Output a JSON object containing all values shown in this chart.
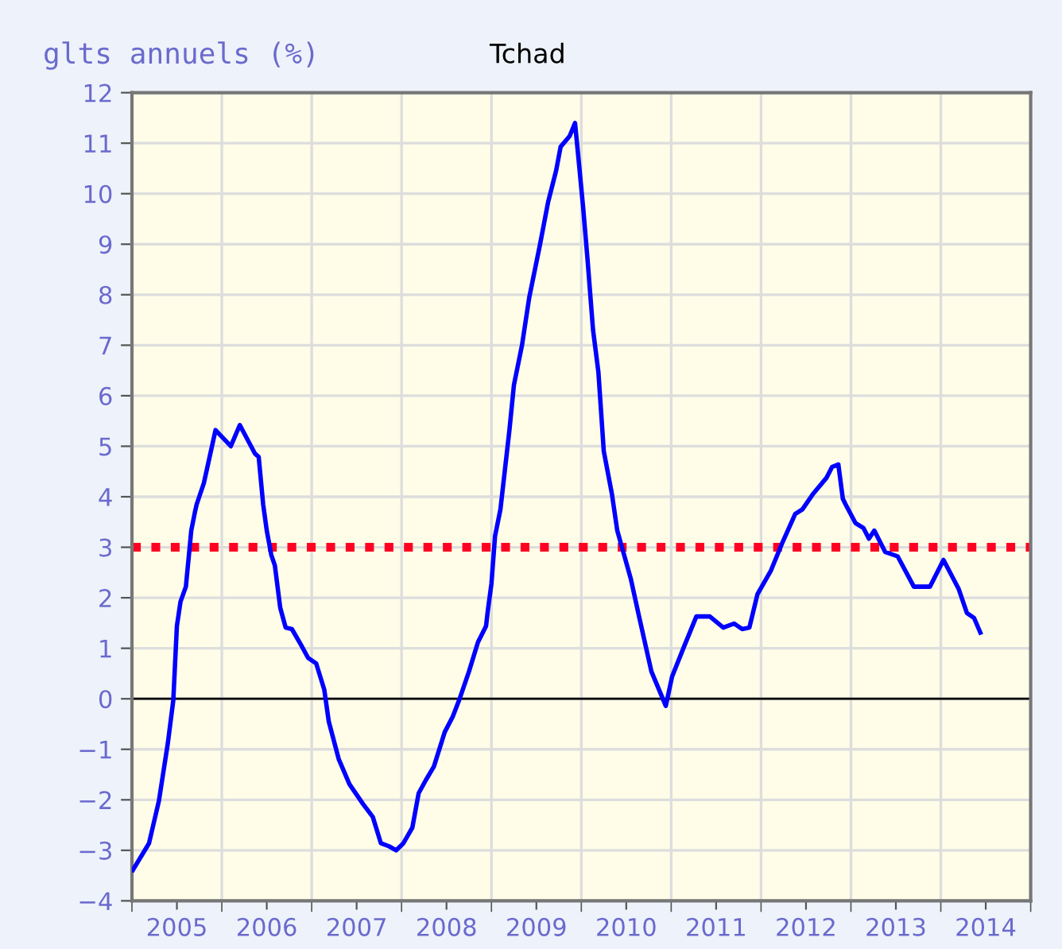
{
  "chart_data": {
    "type": "line",
    "title": "Tchad",
    "ylabel": "glts annuels (%)",
    "x": [
      2005.01,
      2005.19,
      2005.3,
      2005.4,
      2005.46,
      2005.5,
      2005.54,
      2005.6,
      2005.66,
      2005.7,
      2005.72,
      2005.8,
      2005.93,
      2006.1,
      2006.2,
      2006.37,
      2006.41,
      2006.46,
      2006.5,
      2006.55,
      2006.59,
      2006.65,
      2006.71,
      2006.78,
      2006.88,
      2006.96,
      2007.05,
      2007.14,
      2007.19,
      2007.3,
      2007.42,
      2007.57,
      2007.68,
      2007.77,
      2007.86,
      2007.94,
      2008.02,
      2008.12,
      2008.19,
      2008.27,
      2008.36,
      2008.48,
      2008.57,
      2008.65,
      2008.75,
      2008.85,
      2008.94,
      2008.96,
      2009.0,
      2009.04,
      2009.1,
      2009.2,
      2009.25,
      2009.34,
      2009.42,
      2009.54,
      2009.63,
      2009.72,
      2009.77,
      2009.87,
      2009.93,
      2009.97,
      2010.02,
      2010.07,
      2010.13,
      2010.19,
      2010.25,
      2010.34,
      2010.4,
      2010.55,
      2010.64,
      2010.78,
      2010.94,
      2011.01,
      2011.14,
      2011.28,
      2011.43,
      2011.58,
      2011.7,
      2011.79,
      2011.87,
      2011.96,
      2012.11,
      2012.23,
      2012.38,
      2012.46,
      2012.58,
      2012.73,
      2012.79,
      2012.86,
      2012.91,
      2012.94,
      2013.05,
      2013.14,
      2013.2,
      2013.26,
      2013.38,
      2013.52,
      2013.7,
      2013.88,
      2014.03,
      2014.2,
      2014.29,
      2014.37,
      2014.44
    ],
    "series": [
      {
        "color": "#0000ff",
        "values": [
          -3.39,
          -2.86,
          -2.02,
          -0.87,
          -0.03,
          1.44,
          1.92,
          2.22,
          3.33,
          3.69,
          3.85,
          4.27,
          5.32,
          5.0,
          5.42,
          4.85,
          4.79,
          3.85,
          3.33,
          2.85,
          2.64,
          1.8,
          1.41,
          1.38,
          1.07,
          0.81,
          0.7,
          0.18,
          -0.45,
          -1.19,
          -1.69,
          -2.08,
          -2.34,
          -2.86,
          -2.92,
          -3.0,
          -2.86,
          -2.55,
          -1.87,
          -1.61,
          -1.34,
          -0.66,
          -0.35,
          0.02,
          0.54,
          1.12,
          1.44,
          1.75,
          2.28,
          3.22,
          3.75,
          5.32,
          6.21,
          7.0,
          7.94,
          8.99,
          9.83,
          10.46,
          10.93,
          11.14,
          11.4,
          10.67,
          9.73,
          8.68,
          7.31,
          6.47,
          4.9,
          4.06,
          3.33,
          2.38,
          1.65,
          0.54,
          -0.14,
          0.44,
          1.02,
          1.63,
          1.63,
          1.41,
          1.49,
          1.38,
          1.41,
          2.07,
          2.54,
          3.06,
          3.66,
          3.75,
          4.06,
          4.38,
          4.59,
          4.64,
          3.96,
          3.85,
          3.48,
          3.38,
          3.17,
          3.33,
          2.91,
          2.82,
          2.22,
          2.22,
          2.75,
          2.17,
          1.7,
          1.6,
          1.31
        ]
      }
    ],
    "xlim": [
      2005,
      2015
    ],
    "xticks": [
      {
        "value": 2005.5,
        "label": "2005"
      },
      {
        "value": 2006.5,
        "label": "2006"
      },
      {
        "value": 2007.5,
        "label": "2007"
      },
      {
        "value": 2008.5,
        "label": "2008"
      },
      {
        "value": 2009.5,
        "label": "2009"
      },
      {
        "value": 2010.5,
        "label": "2010"
      },
      {
        "value": 2011.5,
        "label": "2011"
      },
      {
        "value": 2012.5,
        "label": "2012"
      },
      {
        "value": 2013.5,
        "label": "2013"
      },
      {
        "value": 2014.5,
        "label": "2014"
      },
      {
        "value": 2005,
        "label": null
      },
      {
        "value": 2006,
        "label": null
      },
      {
        "value": 2007,
        "label": null
      },
      {
        "value": 2008,
        "label": null
      },
      {
        "value": 2009,
        "label": null
      },
      {
        "value": 2010,
        "label": null
      },
      {
        "value": 2011,
        "label": null
      },
      {
        "value": 2012,
        "label": null
      },
      {
        "value": 2013,
        "label": null
      },
      {
        "value": 2014,
        "label": null
      },
      {
        "value": 2015,
        "label": null
      }
    ],
    "ylim": [
      -4,
      12
    ],
    "yticks": [
      -4,
      -3,
      -2,
      -1,
      0,
      1,
      2,
      3,
      4,
      5,
      6,
      7,
      8,
      9,
      10,
      11,
      12
    ],
    "ref_lines": [
      {
        "axis": "y",
        "value": 0,
        "color": "#000000",
        "line_style": "solid"
      },
      {
        "axis": "y",
        "value": 3,
        "color": "#ff0022",
        "line_style": "dotted"
      }
    ],
    "grid": true,
    "legend": false,
    "marker": "none",
    "line_style": "solid"
  }
}
